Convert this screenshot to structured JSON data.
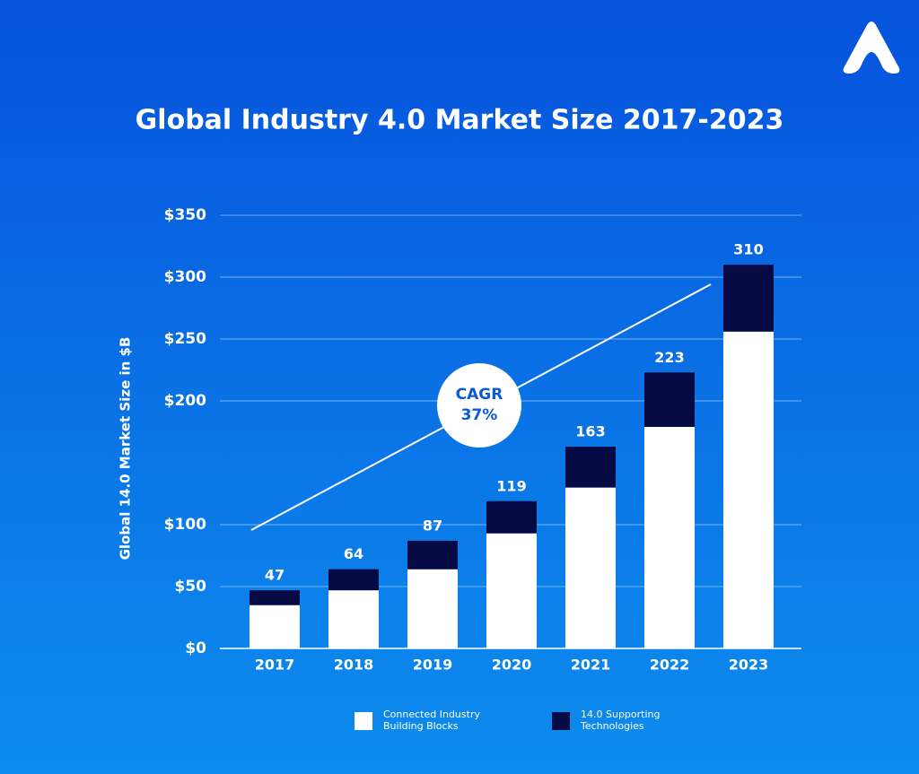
{
  "chart_data": {
    "type": "stacked_bar",
    "title": "Global Industry 4.0 Market Size 2017-2023",
    "y_label": "Global 14.0 Market Size in $B",
    "categories": [
      "2017",
      "2018",
      "2019",
      "2020",
      "2021",
      "2022",
      "2023"
    ],
    "series": [
      {
        "name": "Connected Industry Building Blocks",
        "color": "#ffffff",
        "values": [
          35,
          47,
          64,
          93,
          130,
          179,
          256
        ]
      },
      {
        "name": "14.0 Supporting Technologies",
        "color": "#050a45",
        "values": [
          12,
          17,
          23,
          26,
          33,
          44,
          54
        ]
      }
    ],
    "totals": [
      47,
      64,
      87,
      119,
      163,
      223,
      310
    ],
    "ylim": [
      0,
      350
    ],
    "yticks": [
      {
        "value": 0,
        "label": "$0"
      },
      {
        "value": 50,
        "label": "$50"
      },
      {
        "value": 100,
        "label": "$100"
      },
      {
        "value": 200,
        "label": "$200"
      },
      {
        "value": 250,
        "label": "$250"
      },
      {
        "value": 300,
        "label": "$300"
      },
      {
        "value": 350,
        "label": "$350"
      }
    ],
    "grid": true,
    "annotation": {
      "title": "CAGR",
      "value": "37%"
    }
  }
}
